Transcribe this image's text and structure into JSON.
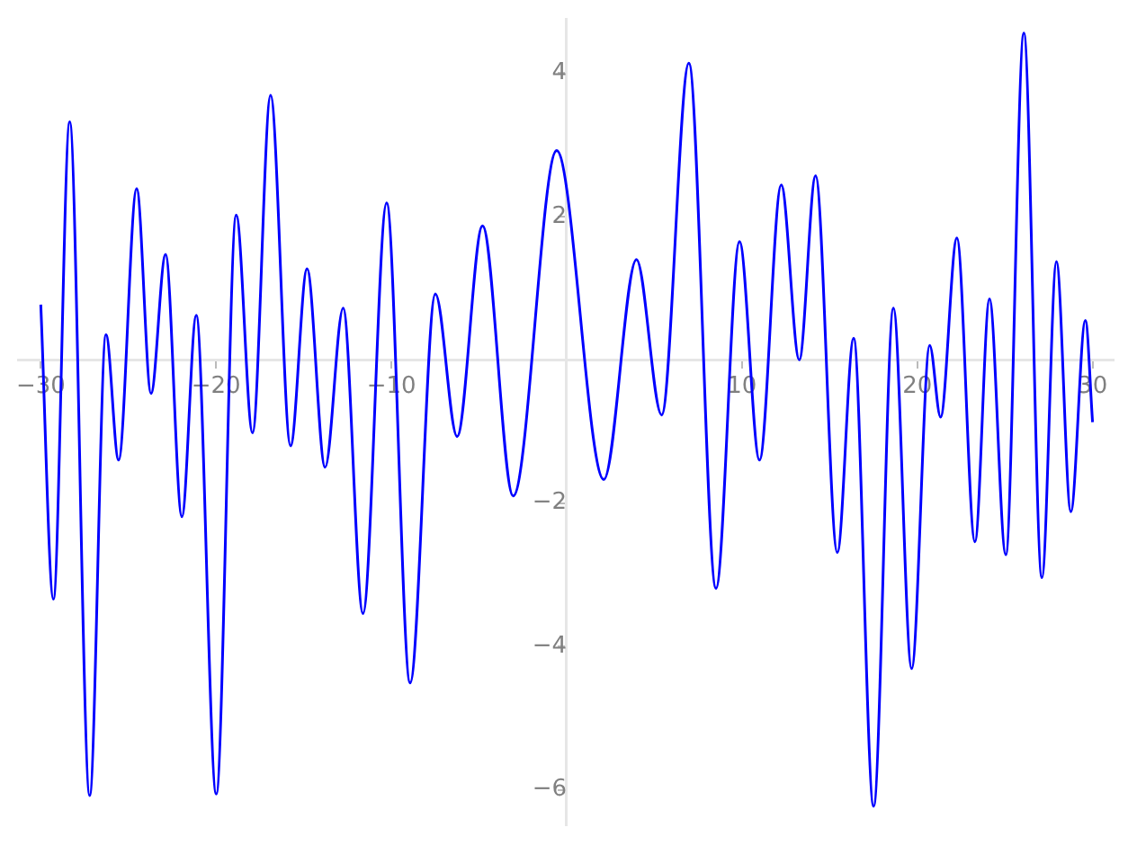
{
  "chart_data": {
    "type": "line",
    "grid": false,
    "legend": false,
    "marker": "none",
    "line_style": "solid",
    "x": [
      -30,
      -29.28,
      -28.35,
      -27.21,
      -26.28,
      -25.56,
      -24.53,
      -23.71,
      -22.88,
      -21.95,
      -21.13,
      -19.99,
      -18.85,
      -17.92,
      -16.89,
      -15.75,
      -14.81,
      -13.78,
      -12.75,
      -11.62,
      -10.27,
      -8.93,
      -7.49,
      -6.25,
      -4.8,
      -3.05,
      -0.57,
      2.12,
      3.98,
      5.42,
      6.97,
      8.52,
      9.86,
      11.0,
      12.24,
      13.27,
      14.2,
      15.44,
      16.37,
      17.51,
      18.64,
      19.68,
      20.71,
      21.33,
      22.26,
      23.29,
      24.12,
      25.05,
      26.08,
      27.11,
      27.94,
      28.76,
      29.59,
      30
    ],
    "series": [
      {
        "color": "#0000ff",
        "values": [
          0.77,
          -3.34,
          3.32,
          -6.08,
          0.35,
          -1.4,
          2.39,
          -0.47,
          1.47,
          -2.19,
          0.62,
          -6.06,
          2.02,
          -1.02,
          3.69,
          -1.2,
          1.27,
          -1.5,
          0.72,
          -3.54,
          2.19,
          -4.51,
          0.92,
          -1.07,
          1.87,
          -1.9,
          2.92,
          -1.67,
          1.4,
          -0.77,
          4.14,
          -3.19,
          1.65,
          -1.4,
          2.44,
          0.0,
          2.57,
          -2.69,
          0.3,
          -6.23,
          0.72,
          -4.31,
          0.2,
          -0.8,
          1.7,
          -2.54,
          0.85,
          -2.72,
          4.56,
          -3.04,
          1.37,
          -2.12,
          0.55,
          -0.87
        ]
      }
    ],
    "xlim": [
      -31.3,
      31.2
    ],
    "ylim": [
      -6.5,
      4.75
    ],
    "xticks": [
      -30,
      -20,
      -10,
      10,
      20,
      30
    ],
    "yticks": [
      -6,
      -4,
      -2,
      2,
      4
    ]
  }
}
